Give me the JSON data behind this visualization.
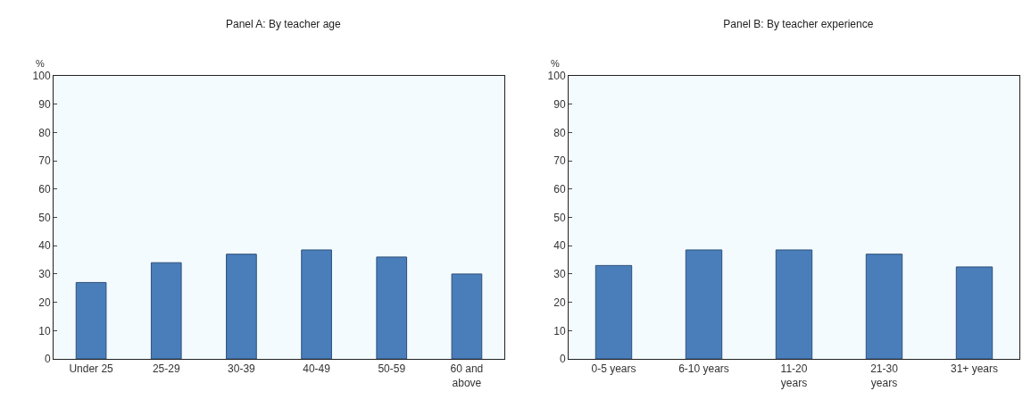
{
  "chart_data": [
    {
      "type": "bar",
      "title": "Panel A: By teacher age",
      "ylabel": "%",
      "categories": [
        "Under 25",
        "25-29",
        "30-39",
        "40-49",
        "50-59",
        "60 and above"
      ],
      "values": [
        27,
        34,
        37,
        38.5,
        36,
        30
      ],
      "color": "#4a7ebb",
      "ylim": [
        0,
        100
      ],
      "yticks": [
        0,
        10,
        20,
        30,
        40,
        50,
        60,
        70,
        80,
        90,
        100
      ],
      "grid": false
    },
    {
      "type": "bar",
      "title": "Panel B: By teacher experience",
      "ylabel": "%",
      "categories": [
        "0-5 years",
        "6-10 years",
        "11-20 years",
        "21-30 years",
        "31+ years"
      ],
      "values": [
        33,
        38.5,
        38.5,
        37,
        32.5
      ],
      "color": "#4a7ebb",
      "ylim": [
        0,
        100
      ],
      "yticks": [
        0,
        10,
        20,
        30,
        40,
        50,
        60,
        70,
        80,
        90,
        100
      ],
      "grid": false
    }
  ]
}
